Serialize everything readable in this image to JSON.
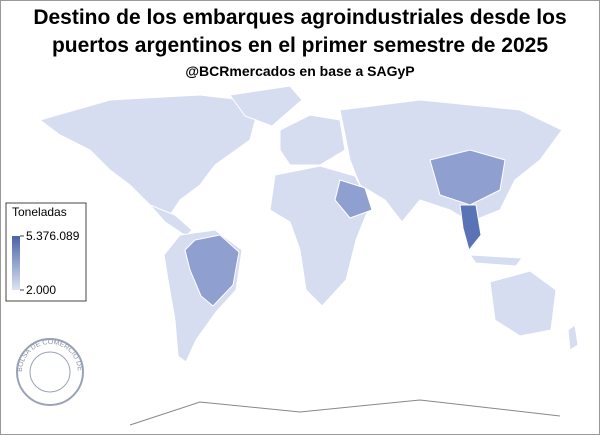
{
  "header": {
    "title_lines": [
      "Destino de los embarques agroindustriales desde los",
      "puertos argentinos en el primer semestre de 2025"
    ],
    "subtitle": "@BCRmercados en base a SAGyP"
  },
  "legend": {
    "title": "Toneladas",
    "scale": [
      {
        "value": 5376089,
        "label": "5.376.089"
      },
      {
        "value": 2000,
        "label": "2.000"
      }
    ],
    "colors": [
      "#4a63a8",
      "#dde3f3"
    ]
  },
  "logo": {
    "text": "BOLSA DE COMERCIO DE ROSARIO"
  }
}
